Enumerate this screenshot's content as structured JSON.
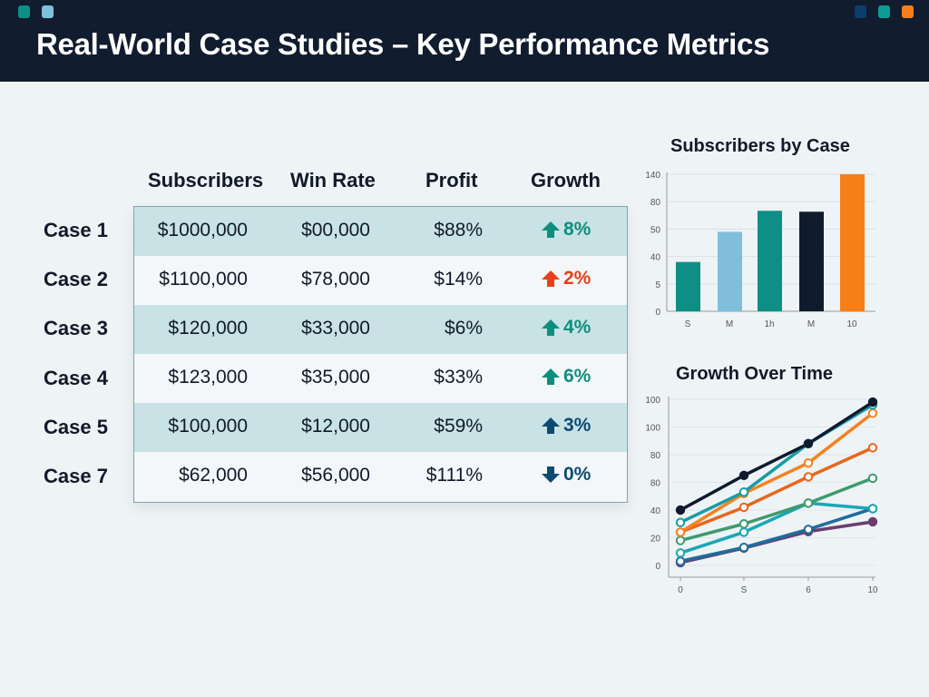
{
  "header": {
    "title": "Real-World Case Studies – Key Performance Metrics",
    "left_dots": [
      "#0e8f86",
      "#7fbfdc"
    ],
    "right_dots": [
      "#0d3d6b",
      "#0e9a96",
      "#f77f1a"
    ]
  },
  "table": {
    "columns": [
      "Subscribers",
      "Win Rate",
      "Profit",
      "Growth"
    ],
    "rows": [
      {
        "label": "Case 1",
        "subscribers": "$1000,000",
        "win_rate": "$00,000",
        "profit": "$88%",
        "growth": "8%",
        "direction": "up",
        "color": "#0e8f7e"
      },
      {
        "label": "Case 2",
        "subscribers": "$1100,000",
        "win_rate": "$78,000",
        "profit": "$14%",
        "growth": "2%",
        "direction": "up",
        "color": "#e8401a"
      },
      {
        "label": "Case 3",
        "subscribers": "$120,000",
        "win_rate": "$33,000",
        "profit": "$6%",
        "growth": "4%",
        "direction": "up",
        "color": "#0e8f7e"
      },
      {
        "label": "Case 4",
        "subscribers": "$123,000",
        "win_rate": "$35,000",
        "profit": "$33%",
        "growth": "6%",
        "direction": "up",
        "color": "#0e8f7e"
      },
      {
        "label": "Case 5",
        "subscribers": "$100,000",
        "win_rate": "$12,000",
        "profit": "$59%",
        "growth": "3%",
        "direction": "up",
        "color": "#0d4a72"
      },
      {
        "label": "Case 7",
        "subscribers": "$62,000",
        "win_rate": "$56,000",
        "profit": "$111%",
        "growth": "0%",
        "direction": "down",
        "color": "#0d4a72"
      }
    ]
  },
  "chart_data": [
    {
      "type": "bar",
      "title": "Subscribers by Case",
      "categories": [
        "S",
        "M",
        "1h",
        "M",
        "10"
      ],
      "values": [
        33,
        49,
        70,
        69,
        140
      ],
      "colors": [
        "#0e8f86",
        "#7fbfdc",
        "#0e8f86",
        "#0f1b2d",
        "#f77f1a"
      ],
      "yticks": [
        0,
        5,
        40,
        50,
        80,
        140
      ],
      "ylim": [
        0,
        140
      ],
      "grid": true
    },
    {
      "type": "line",
      "title": "Growth Over Time",
      "x": [
        "0",
        "S",
        "6",
        "10"
      ],
      "ytick_labels": [
        "0",
        "20",
        "40",
        "80",
        "80",
        "100",
        "100"
      ],
      "ylim": [
        0,
        120
      ],
      "grid": true,
      "series": [
        {
          "color": "#0f1b2d",
          "values": [
            40,
            65,
            88,
            118
          ],
          "filled": true
        },
        {
          "color": "#1a9aa8",
          "values": [
            31,
            53,
            88,
            116
          ],
          "filled": false
        },
        {
          "color": "#f5821f",
          "values": [
            24,
            52,
            74,
            110
          ],
          "filled": false
        },
        {
          "color": "#e8661c",
          "values": [
            24,
            42,
            64,
            85
          ],
          "filled": false
        },
        {
          "color": "#3f9a6e",
          "values": [
            18,
            30,
            45,
            63
          ],
          "filled": false
        },
        {
          "color": "#1aa7b4",
          "values": [
            9,
            24,
            45,
            41
          ],
          "filled": false
        },
        {
          "color": "#1f6d9c",
          "values": [
            3,
            13,
            26,
            41
          ],
          "filled": false
        },
        {
          "color": "#6b3d6e",
          "values": [
            2,
            12.5,
            24.5,
            31.5
          ],
          "filled": true
        }
      ]
    }
  ]
}
